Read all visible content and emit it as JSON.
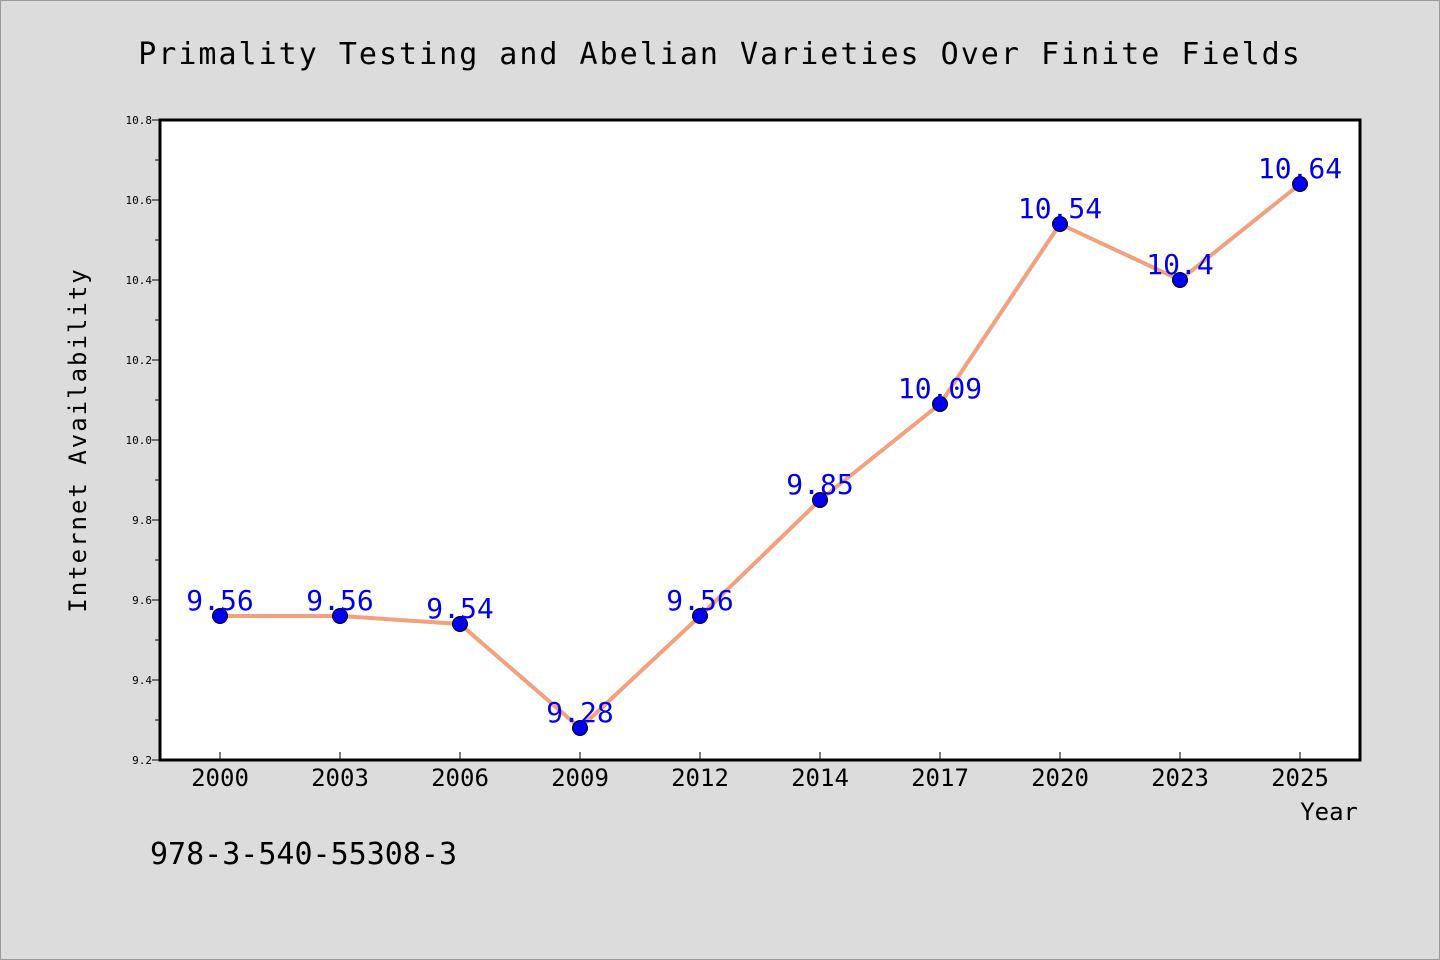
{
  "chart_data": {
    "type": "line",
    "title": "Primality Testing and Abelian Varieties Over Finite Fields",
    "xlabel": "Year",
    "ylabel": "Internet Availability",
    "categories": [
      "2000",
      "2003",
      "2006",
      "2009",
      "2012",
      "2014",
      "2017",
      "2020",
      "2023",
      "2025"
    ],
    "series": [
      {
        "values": [
          9.56,
          9.56,
          9.54,
          9.28,
          9.56,
          9.85,
          10.09,
          10.54,
          10.4,
          10.64
        ],
        "labels": [
          "9.56",
          "9.56",
          "9.54",
          "9.28",
          "9.56",
          "9.85",
          "10.09",
          "10.54",
          "10.4",
          "10.64"
        ],
        "line_color": "#f4a07c",
        "marker_color": "#0000ee",
        "label_color": "#0000ee"
      }
    ],
    "ylim": [
      9.2,
      10.8
    ],
    "yticks": [
      "9.2",
      "9.4",
      "9.6",
      "9.8",
      "10.0",
      "10.2",
      "10.4",
      "10.6",
      "10.8"
    ],
    "grid": false,
    "legend": "none"
  },
  "annotation": {
    "text": "978-3-540-55308-3"
  },
  "colors": {
    "background": "#dcdcdc",
    "plot_background": "#ffffff",
    "axis": "#000000"
  }
}
